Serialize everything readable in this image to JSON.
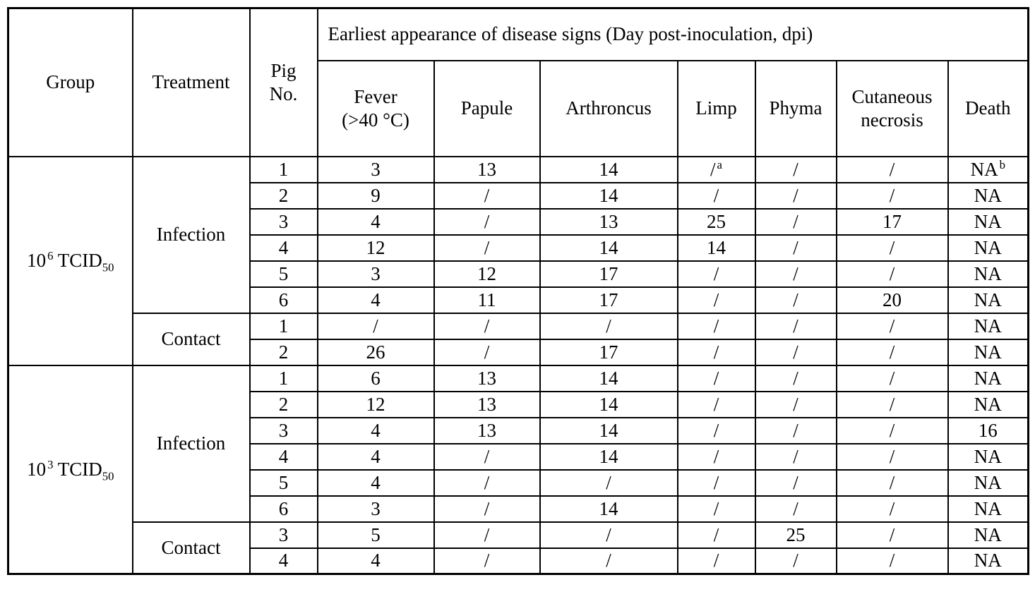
{
  "table": {
    "header": {
      "group": "Group",
      "treatment": "Treatment",
      "pig_line1": "Pig",
      "pig_line2": "No.",
      "span_title": "Earliest appearance of disease signs (Day post-inoculation, dpi)",
      "fever_line1": "Fever",
      "fever_line2": "(>40 °C)",
      "papule": "Papule",
      "arthroncus": "Arthroncus",
      "limp": "Limp",
      "phyma": "Phyma",
      "cutaneous_line1": "Cutaneous",
      "cutaneous_line2": "necrosis",
      "death": "Death"
    },
    "groups": [
      {
        "label": {
          "base": "10",
          "exp": "6",
          "name": "TCID",
          "sub": "50"
        },
        "sections": [
          {
            "treatment": "Infection",
            "rows": [
              {
                "pig": "1",
                "cells": [
                  "3",
                  "13",
                  "14",
                  {
                    "v": "/",
                    "sup": "a"
                  },
                  "/",
                  "/",
                  {
                    "v": "NA",
                    "sup": "b"
                  }
                ]
              },
              {
                "pig": "2",
                "cells": [
                  "9",
                  "/",
                  "14",
                  "/",
                  "/",
                  "/",
                  "NA"
                ]
              },
              {
                "pig": "3",
                "cells": [
                  "4",
                  "/",
                  "13",
                  "25",
                  "/",
                  "17",
                  "NA"
                ]
              },
              {
                "pig": "4",
                "cells": [
                  "12",
                  "/",
                  "14",
                  "14",
                  "/",
                  "/",
                  "NA"
                ]
              },
              {
                "pig": "5",
                "cells": [
                  "3",
                  "12",
                  "17",
                  "/",
                  "/",
                  "/",
                  "NA"
                ]
              },
              {
                "pig": "6",
                "cells": [
                  "4",
                  "11",
                  "17",
                  "/",
                  "/",
                  "20",
                  "NA"
                ]
              }
            ]
          },
          {
            "treatment": "Contact",
            "rows": [
              {
                "pig": "1",
                "cells": [
                  "/",
                  "/",
                  "/",
                  "/",
                  "/",
                  "/",
                  "NA"
                ]
              },
              {
                "pig": "2",
                "cells": [
                  "26",
                  "/",
                  "17",
                  "/",
                  "/",
                  "/",
                  "NA"
                ]
              }
            ]
          }
        ]
      },
      {
        "label": {
          "base": "10",
          "exp": "3",
          "name": "TCID",
          "sub": "50"
        },
        "sections": [
          {
            "treatment": "Infection",
            "rows": [
              {
                "pig": "1",
                "cells": [
                  "6",
                  "13",
                  "14",
                  "/",
                  "/",
                  "/",
                  "NA"
                ]
              },
              {
                "pig": "2",
                "cells": [
                  "12",
                  "13",
                  "14",
                  "/",
                  "/",
                  "/",
                  "NA"
                ]
              },
              {
                "pig": "3",
                "cells": [
                  "4",
                  "13",
                  "14",
                  "/",
                  "/",
                  "/",
                  "16"
                ]
              },
              {
                "pig": "4",
                "cells": [
                  "4",
                  "/",
                  "14",
                  "/",
                  "/",
                  "/",
                  "NA"
                ]
              },
              {
                "pig": "5",
                "cells": [
                  "4",
                  "/",
                  "/",
                  "/",
                  "/",
                  "/",
                  "NA"
                ]
              },
              {
                "pig": "6",
                "cells": [
                  "3",
                  "/",
                  "14",
                  "/",
                  "/",
                  "/",
                  "NA"
                ]
              }
            ]
          },
          {
            "treatment": "Contact",
            "rows": [
              {
                "pig": "3",
                "cells": [
                  "5",
                  "/",
                  "/",
                  "/",
                  "25",
                  "/",
                  "NA"
                ]
              },
              {
                "pig": "4",
                "cells": [
                  "4",
                  "/",
                  "/",
                  "/",
                  "/",
                  "/",
                  "NA"
                ]
              }
            ]
          }
        ]
      }
    ],
    "colors": {
      "border": "#000000",
      "text": "#000000",
      "background": "#ffffff"
    }
  }
}
